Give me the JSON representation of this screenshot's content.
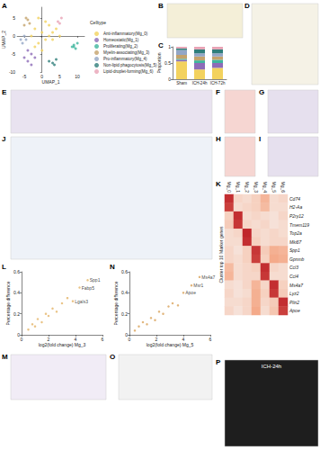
{
  "panel_labels": [
    "A",
    "B",
    "C",
    "D",
    "E",
    "F",
    "G",
    "H",
    "I",
    "J",
    "K",
    "L",
    "M",
    "N",
    "O",
    "P"
  ],
  "annotations": [
    {
      "panel": "P",
      "text": "ICH-24h"
    }
  ],
  "chart_data": [
    {
      "panel": "A",
      "type": "scatter",
      "x_label": "UMAP_1",
      "y_label": "UMAP_2",
      "legend_title": "Celltype",
      "legend": "right",
      "grid": false,
      "xlim": [
        -7,
        12
      ],
      "xticks": [
        -5,
        0,
        5,
        10
      ],
      "ylim": [
        -10,
        8
      ],
      "yticks": [
        -10,
        -5,
        0,
        5
      ],
      "series": [
        {
          "name": "Anti-inflammatory(Mg_0)",
          "color": "#F3D25E",
          "x": [
            -2,
            0,
            2,
            -1,
            3,
            1,
            -3,
            2,
            0,
            4,
            -1,
            1,
            3,
            -2,
            5
          ],
          "values": [
            2,
            1,
            3,
            -2,
            -1,
            4,
            0,
            0,
            -4,
            2,
            5,
            -1,
            1,
            -3,
            0
          ]
        },
        {
          "name": "Homeostatic(Mg_1)",
          "color": "#8D6BB8",
          "x": [
            -5,
            -4,
            -3,
            -4,
            -2,
            -3
          ],
          "values": [
            -6,
            -7,
            -5,
            -4,
            -6,
            -8
          ]
        },
        {
          "name": "Proliferating(Mg_2)",
          "color": "#3FB59E",
          "x": [
            8.5,
            9,
            9.5,
            9,
            10
          ],
          "values": [
            -3,
            -2.5,
            -3.5,
            -3,
            -2
          ]
        },
        {
          "name": "Myelin-associating(Mg_3)",
          "color": "#C4A26B",
          "x": [
            -5,
            -4,
            -3.5,
            -4.5
          ],
          "values": [
            3,
            4.5,
            3.5,
            5
          ]
        },
        {
          "name": "Pro-inflammatory(Mg_4)",
          "color": "#93A6C6",
          "x": [
            -6,
            -5,
            -5.5,
            -4.5
          ],
          "values": [
            -1,
            0,
            -2,
            -1
          ]
        },
        {
          "name": "Non-lipid phagocytosis(Mg_5)",
          "color": "#2F7E7B",
          "x": [
            2,
            3,
            4,
            3.5
          ],
          "values": [
            -7,
            -7.5,
            -6.5,
            -8
          ]
        },
        {
          "name": "Lipid-droplet-forming(Mg_6)",
          "color": "#E8A3B5",
          "x": [
            4.5,
            5.5,
            5
          ],
          "values": [
            4,
            5,
            3.5
          ]
        }
      ]
    },
    {
      "panel": "C",
      "type": "bar",
      "stacked": true,
      "y_label": "Proportion",
      "grid": false,
      "categories": [
        "Sham",
        "ICH-24h",
        "ICH-72h"
      ],
      "ylim": [
        0,
        1
      ],
      "yticks": [
        0,
        0.5,
        1
      ],
      "series": [
        {
          "name": "Mg_0",
          "color": "#F3D25E",
          "values": [
            0.55,
            0.3,
            0.35
          ]
        },
        {
          "name": "Mg_1",
          "color": "#8D6BB8",
          "values": [
            0.05,
            0.2,
            0.15
          ]
        },
        {
          "name": "Mg_2",
          "color": "#3FB59E",
          "values": [
            0.03,
            0.08,
            0.1
          ]
        },
        {
          "name": "Mg_3",
          "color": "#C4A26B",
          "values": [
            0.12,
            0.12,
            0.1
          ]
        },
        {
          "name": "Mg_4",
          "color": "#93A6C6",
          "values": [
            0.15,
            0.1,
            0.1
          ]
        },
        {
          "name": "Mg_5",
          "color": "#2F7E7B",
          "values": [
            0.05,
            0.12,
            0.12
          ]
        },
        {
          "name": "Mg_6",
          "color": "#E8A3B5",
          "values": [
            0.05,
            0.08,
            0.08
          ]
        }
      ]
    },
    {
      "panel": "K",
      "type": "heatmap",
      "y_label": "Cluster top 10 Marker genes",
      "categories": [
        "Mg_0",
        "Mg_1",
        "Mg_2",
        "Mg_3",
        "Mg_4",
        "Mg_5",
        "Mg_6"
      ],
      "rows": [
        "Cd74",
        "H2-Aa",
        "P2ry12",
        "Tmem119",
        "Top2a",
        "Mki67",
        "Spp1",
        "Gpnmb",
        "Ccl3",
        "Ccl4",
        "Ms4a7",
        "Lyz2",
        "Plin2",
        "Apoe"
      ],
      "zlim": [
        -1,
        2
      ],
      "cells": [
        [
          1.9,
          -0.4,
          -0.5,
          -0.3,
          0.2,
          -0.5,
          -0.4
        ],
        [
          1.7,
          -0.5,
          -0.4,
          -0.3,
          0.1,
          -0.5,
          -0.5
        ],
        [
          -0.3,
          1.9,
          -0.5,
          -0.4,
          -0.5,
          -0.6,
          -0.4
        ],
        [
          -0.2,
          1.8,
          -0.4,
          -0.5,
          -0.4,
          -0.6,
          -0.5
        ],
        [
          -0.5,
          -0.4,
          2.0,
          -0.4,
          -0.5,
          -0.4,
          -0.5
        ],
        [
          -0.5,
          -0.5,
          1.9,
          -0.3,
          -0.5,
          -0.4,
          -0.4
        ],
        [
          -0.4,
          -0.6,
          -0.3,
          1.8,
          -0.2,
          0.3,
          0.2
        ],
        [
          -0.4,
          -0.5,
          -0.3,
          1.7,
          -0.3,
          0.4,
          0.3
        ],
        [
          0.1,
          -0.5,
          -0.4,
          -0.3,
          1.9,
          -0.4,
          -0.5
        ],
        [
          0.2,
          -0.5,
          -0.4,
          -0.4,
          1.8,
          -0.5,
          -0.5
        ],
        [
          -0.5,
          -0.6,
          -0.4,
          0.2,
          -0.4,
          1.9,
          -0.3
        ],
        [
          -0.4,
          -0.6,
          -0.5,
          0.3,
          -0.3,
          1.8,
          -0.2
        ],
        [
          -0.5,
          -0.5,
          -0.4,
          0.3,
          -0.4,
          -0.2,
          1.9
        ],
        [
          -0.4,
          -0.6,
          -0.4,
          0.4,
          -0.5,
          -0.1,
          1.7
        ]
      ]
    },
    {
      "panel": "L",
      "type": "scatter",
      "x_label": "log2(fold change) Mg_3",
      "y_label": "Percentage difference",
      "color": "#E3B466",
      "grid": false,
      "xlim": [
        0,
        6
      ],
      "xticks": [
        0,
        2,
        4,
        6
      ],
      "ylim": [
        0,
        0.6
      ],
      "yticks": [
        0,
        0.2,
        0.4,
        0.6
      ],
      "x": [
        0.5,
        0.8,
        1,
        1.2,
        1.5,
        1.8,
        2,
        2.3,
        2.6,
        3,
        3.4,
        3.8,
        4.3,
        4.9
      ],
      "values": [
        0.05,
        0.1,
        0.08,
        0.15,
        0.12,
        0.2,
        0.18,
        0.25,
        0.22,
        0.3,
        0.35,
        0.32,
        0.45,
        0.52
      ],
      "point_labels": [
        null,
        null,
        null,
        null,
        null,
        null,
        null,
        null,
        null,
        null,
        null,
        "Lgals3",
        "Fabp5",
        "Spp1"
      ]
    },
    {
      "panel": "N",
      "type": "scatter",
      "x_label": "log2(fold change) Mg_5",
      "y_label": "Percentage difference",
      "color": "#D9A35A",
      "grid": false,
      "xlim": [
        0,
        6
      ],
      "xticks": [
        0,
        2,
        4,
        6
      ],
      "ylim": [
        0,
        0.6
      ],
      "yticks": [
        0,
        0.2,
        0.4,
        0.6
      ],
      "x": [
        0.4,
        0.7,
        1,
        1.3,
        1.6,
        1.9,
        2.2,
        2.5,
        2.9,
        3.2,
        3.6,
        4,
        4.6,
        5.2
      ],
      "values": [
        0.04,
        0.08,
        0.12,
        0.1,
        0.16,
        0.14,
        0.22,
        0.2,
        0.27,
        0.3,
        0.28,
        0.4,
        0.47,
        0.55
      ],
      "point_labels": [
        null,
        null,
        null,
        null,
        null,
        null,
        null,
        null,
        null,
        null,
        null,
        "Apoe",
        "Msr1",
        "Ms4a7"
      ]
    }
  ]
}
